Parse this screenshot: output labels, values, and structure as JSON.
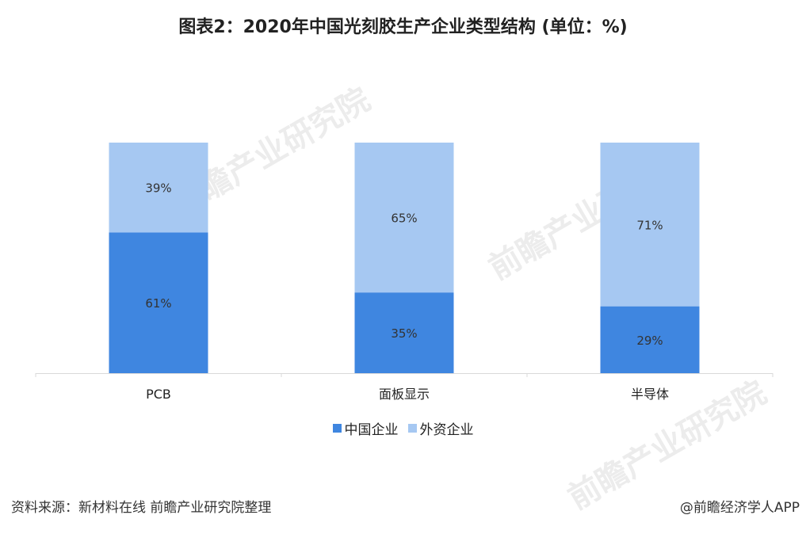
{
  "title": "图表2：2020年中国光刻胶生产企业类型结构 (单位：%)",
  "watermark": "前瞻产业研究院",
  "colors": {
    "china": "#3f86e0",
    "foreign": "#a6c8f2",
    "axis": "#d9d9d9"
  },
  "chart_data": {
    "type": "bar",
    "stacked": true,
    "categories": [
      "PCB",
      "面板显示",
      "半导体"
    ],
    "series": [
      {
        "name": "中国企业",
        "values": [
          61,
          35,
          29
        ],
        "labels": [
          "61%",
          "35%",
          "29%"
        ]
      },
      {
        "name": "外资企业",
        "values": [
          39,
          65,
          71
        ],
        "labels": [
          "39%",
          "65%",
          "71%"
        ]
      }
    ],
    "ylim": [
      0,
      100
    ],
    "legend_position": "bottom"
  },
  "legend": {
    "china": "中国企业",
    "foreign": "外资企业"
  },
  "footer": {
    "source": "资料来源：新材料在线 前瞻产业研究院整理",
    "brand": "@前瞻经济学人APP"
  }
}
